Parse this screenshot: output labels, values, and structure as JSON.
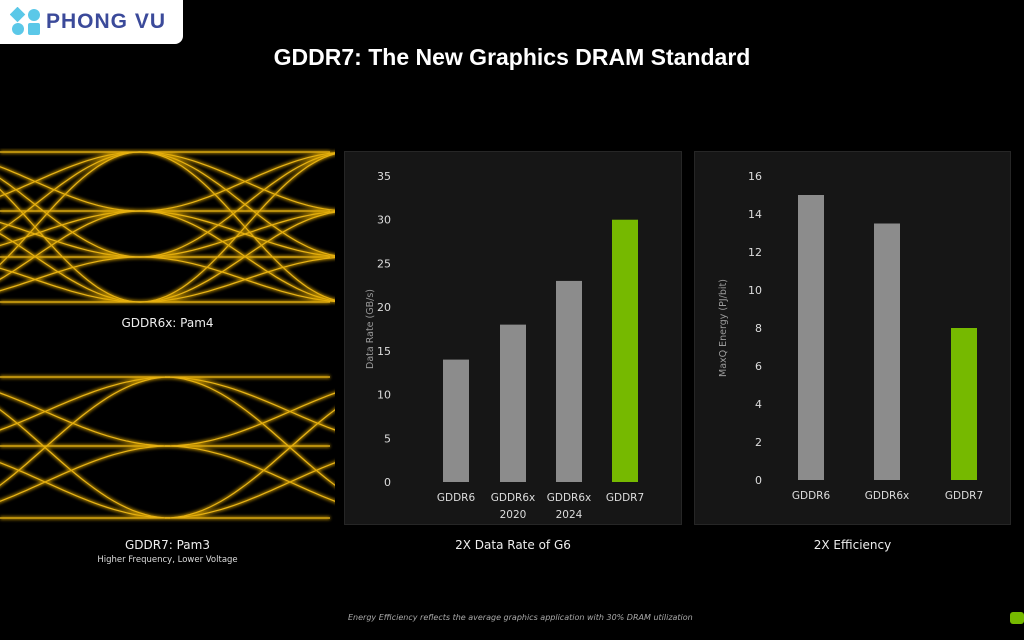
{
  "logo": {
    "text": "PHONG VU",
    "color": "#3b4a9a",
    "accent": "#5bc8e8"
  },
  "title": "GDDR7: The New Graphics DRAM Standard",
  "eye_diagrams": [
    {
      "caption": "GDDR6x: Pam4",
      "subcaption": "",
      "levels": 4,
      "color": "#e0a800"
    },
    {
      "caption": "GDDR7: Pam3",
      "subcaption": "Higher Frequency, Lower Voltage",
      "levels": 3,
      "color": "#e0a800"
    }
  ],
  "chart_data": [
    {
      "type": "bar",
      "title": "2X Data Rate of G6",
      "ylabel": "Data Rate (GB/s)",
      "xlabel": "",
      "categories": [
        [
          "GDDR6"
        ],
        [
          "GDDR6x",
          "2020"
        ],
        [
          "GDDR6x",
          "2024"
        ],
        [
          "GDDR7"
        ]
      ],
      "values": [
        14,
        18,
        23,
        30
      ],
      "colors": [
        "#8c8c8c",
        "#8c8c8c",
        "#8c8c8c",
        "#76b900"
      ],
      "ylim": [
        0,
        35
      ],
      "yticks": [
        0,
        5,
        10,
        15,
        20,
        25,
        30,
        35
      ],
      "grid": false
    },
    {
      "type": "bar",
      "title": "2X Efficiency",
      "ylabel": "MaxQ Energy (PJ/bit)",
      "xlabel": "",
      "categories": [
        [
          "GDDR6"
        ],
        [
          "GDDR6x"
        ],
        [
          "GDDR7"
        ]
      ],
      "values": [
        15,
        13.5,
        8
      ],
      "colors": [
        "#8c8c8c",
        "#8c8c8c",
        "#76b900"
      ],
      "ylim": [
        0,
        16
      ],
      "yticks": [
        0,
        2,
        4,
        6,
        8,
        10,
        12,
        14,
        16
      ],
      "grid": false
    }
  ],
  "footnote": "Energy Efficiency reflects the average graphics application with 30% DRAM utilization"
}
